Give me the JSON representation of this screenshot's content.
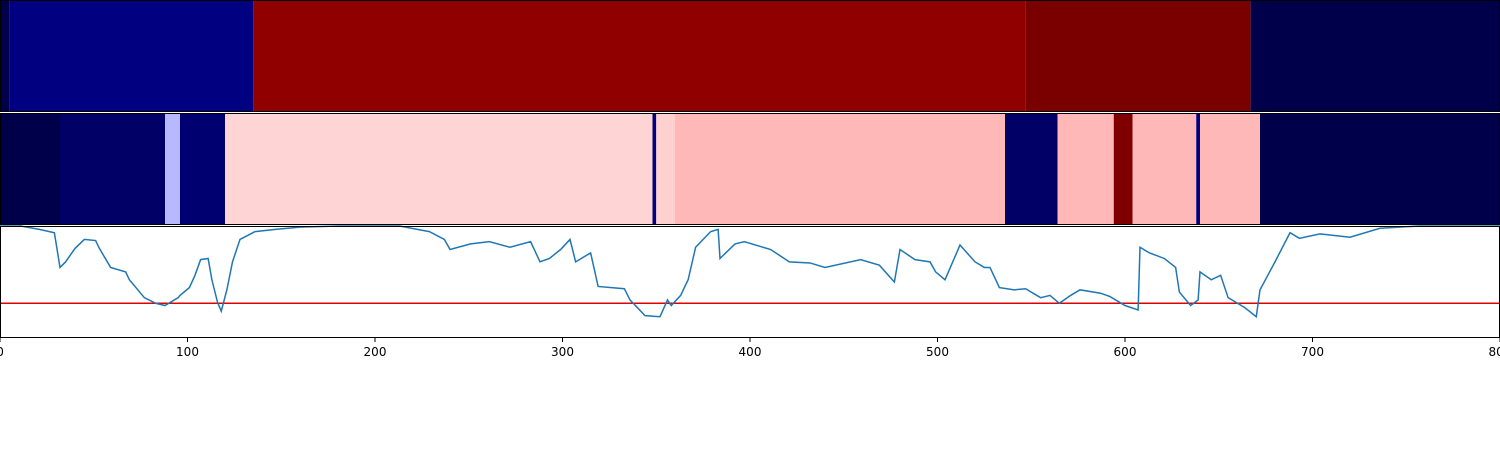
{
  "chart_data": {
    "type": "segments",
    "xlim": [
      0,
      800
    ],
    "xticks": [
      0,
      100,
      200,
      300,
      400,
      500,
      600,
      700,
      800
    ],
    "strips": [
      {
        "bands": [
          {
            "start": 0,
            "end": 5,
            "color": "#00004a"
          },
          {
            "start": 5,
            "end": 135,
            "color": "#000080"
          },
          {
            "start": 135,
            "end": 547,
            "color": "#900000"
          },
          {
            "start": 547,
            "end": 667,
            "color": "#7a0000"
          },
          {
            "start": 667,
            "end": 800,
            "color": "#00004a"
          }
        ]
      },
      {
        "bands": [
          {
            "start": 0,
            "end": 32,
            "color": "#00004a"
          },
          {
            "start": 32,
            "end": 88,
            "color": "#000066"
          },
          {
            "start": 88,
            "end": 96,
            "color": "#b8b8ff"
          },
          {
            "start": 96,
            "end": 120,
            "color": "#000070"
          },
          {
            "start": 120,
            "end": 348,
            "color": "#ffd4d4"
          },
          {
            "start": 348,
            "end": 350,
            "color": "#000080"
          },
          {
            "start": 350,
            "end": 360,
            "color": "#ffd0d0"
          },
          {
            "start": 360,
            "end": 536,
            "color": "#ffb8b8"
          },
          {
            "start": 536,
            "end": 564,
            "color": "#000066"
          },
          {
            "start": 564,
            "end": 594,
            "color": "#ffb8b8"
          },
          {
            "start": 594,
            "end": 604,
            "color": "#800000"
          },
          {
            "start": 604,
            "end": 638,
            "color": "#ffb8b8"
          },
          {
            "start": 638,
            "end": 640,
            "color": "#000080"
          },
          {
            "start": 640,
            "end": 672,
            "color": "#ffb8b8"
          },
          {
            "start": 672,
            "end": 800,
            "color": "#00004a"
          }
        ]
      }
    ],
    "line": {
      "color": "#1f77b4",
      "ylim": [
        0,
        1
      ],
      "x": [
        0,
        11,
        21,
        29,
        32,
        35,
        40,
        45,
        51,
        53,
        59,
        67,
        69,
        77,
        83,
        88,
        95,
        96,
        101,
        104,
        107,
        111,
        113,
        116,
        118,
        121,
        124,
        128,
        136,
        147,
        160,
        181,
        213,
        229,
        237,
        240,
        251,
        261,
        272,
        283,
        288,
        293,
        299,
        304,
        307,
        315,
        319,
        333,
        336,
        344,
        352,
        356,
        358,
        363,
        367,
        371,
        379,
        383,
        384,
        392,
        397,
        411,
        421,
        432,
        440,
        459,
        469,
        477,
        480,
        488,
        496,
        499,
        504,
        512,
        520,
        525,
        528,
        533,
        541,
        547,
        555,
        560,
        565,
        571,
        576,
        587,
        592,
        600,
        607,
        608,
        613,
        621,
        627,
        629,
        635,
        639,
        640,
        646,
        651,
        655,
        664,
        670,
        672,
        680,
        688,
        693,
        704,
        720,
        736,
        757,
        800
      ],
      "values": [
        1.0,
        1.0,
        0.97,
        0.94,
        0.63,
        0.68,
        0.8,
        0.88,
        0.87,
        0.8,
        0.63,
        0.59,
        0.52,
        0.36,
        0.31,
        0.29,
        0.36,
        0.38,
        0.45,
        0.56,
        0.7,
        0.71,
        0.52,
        0.32,
        0.24,
        0.43,
        0.68,
        0.88,
        0.95,
        0.97,
        0.99,
        1.0,
        1.0,
        0.95,
        0.88,
        0.79,
        0.84,
        0.86,
        0.81,
        0.86,
        0.68,
        0.71,
        0.79,
        0.88,
        0.68,
        0.76,
        0.46,
        0.44,
        0.34,
        0.2,
        0.19,
        0.34,
        0.29,
        0.38,
        0.52,
        0.81,
        0.95,
        0.97,
        0.71,
        0.84,
        0.86,
        0.79,
        0.68,
        0.67,
        0.63,
        0.7,
        0.65,
        0.5,
        0.79,
        0.7,
        0.68,
        0.59,
        0.52,
        0.83,
        0.68,
        0.63,
        0.63,
        0.45,
        0.43,
        0.44,
        0.36,
        0.38,
        0.31,
        0.38,
        0.43,
        0.4,
        0.37,
        0.29,
        0.25,
        0.81,
        0.76,
        0.71,
        0.63,
        0.41,
        0.29,
        0.34,
        0.59,
        0.52,
        0.56,
        0.36,
        0.27,
        0.19,
        0.43,
        0.68,
        0.94,
        0.89,
        0.93,
        0.9,
        0.98,
        1.0,
        1.0
      ]
    },
    "hline": {
      "value": 0.31,
      "color": "#e00000"
    }
  }
}
